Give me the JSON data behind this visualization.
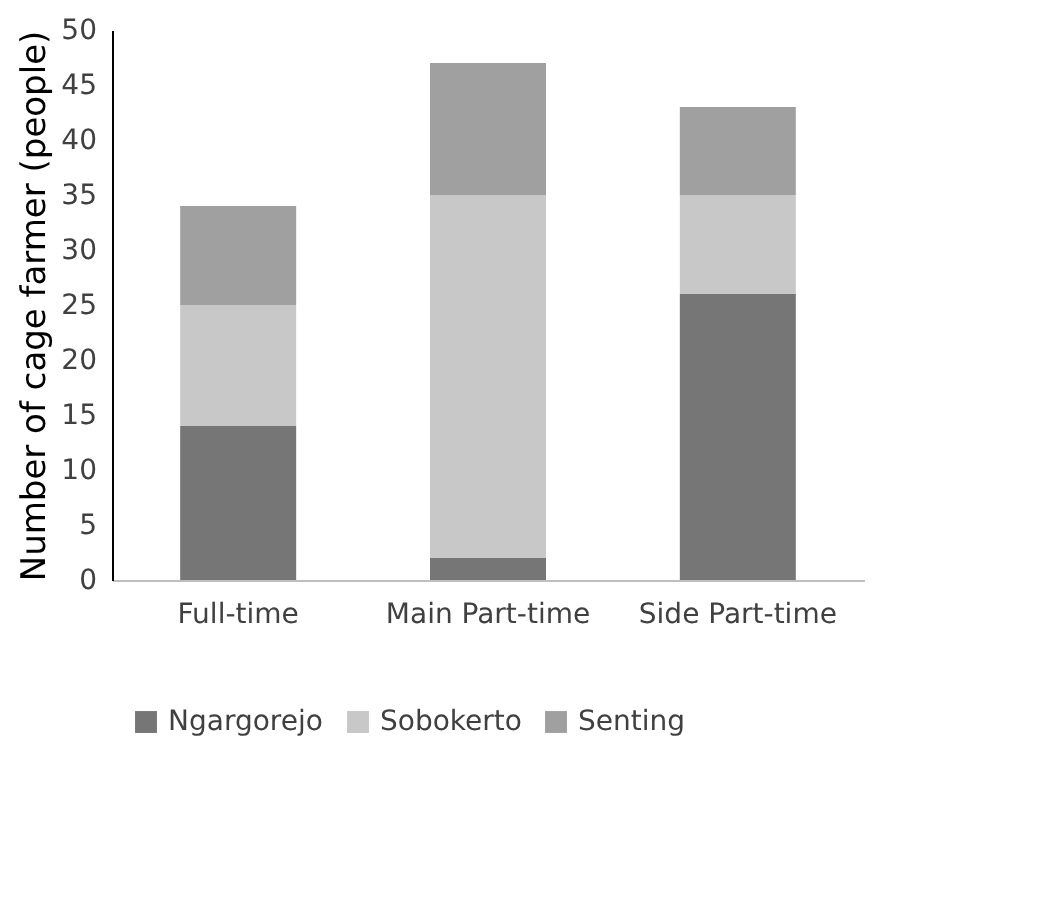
{
  "chart_data": {
    "type": "bar",
    "stacked": true,
    "ylabel": "Number of cage farmer (people)",
    "categories": [
      "Full-time",
      "Main Part-time",
      "Side Part-time"
    ],
    "series": [
      {
        "name": "Ngargorejo",
        "color": "#767676",
        "values": [
          14,
          2,
          26
        ]
      },
      {
        "name": "Sobokerto",
        "color": "#c8c8c8",
        "values": [
          11,
          33,
          9
        ]
      },
      {
        "name": "Senting",
        "color": "#a0a0a0",
        "values": [
          9,
          12,
          8
        ]
      }
    ],
    "ylim": [
      0,
      50
    ],
    "yticks": [
      0,
      5,
      10,
      15,
      20,
      25,
      30,
      35,
      40,
      45,
      50
    ],
    "grid": false,
    "legend": "bottom"
  }
}
